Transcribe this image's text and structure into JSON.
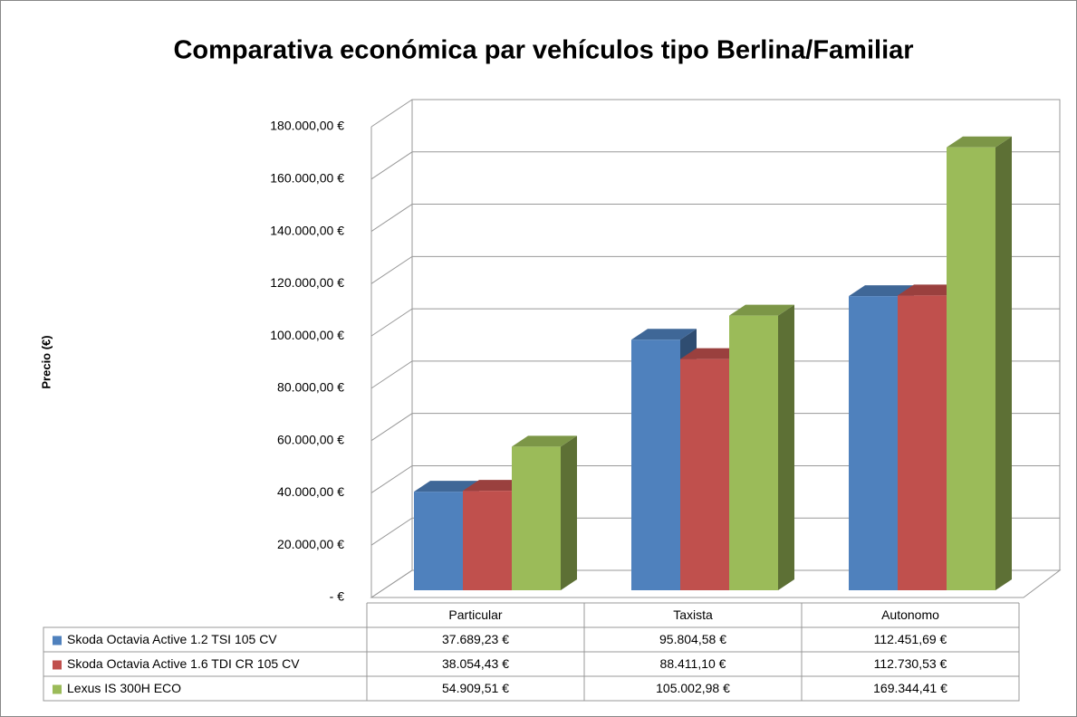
{
  "chart_data": {
    "type": "bar3d",
    "title": "Comparativa económica par vehículos tipo Berlina/Familiar",
    "y_label": "Precio (€)",
    "categories": [
      "Particular",
      "Taxista",
      "Autonomo"
    ],
    "series": [
      {
        "name": "Skoda Octavia Active 1.2 TSI 105 CV",
        "color": "#4f81bd",
        "values": [
          37689.23,
          95804.58,
          112451.69
        ],
        "value_labels": [
          "37.689,23 €",
          "95.804,58 €",
          "112.451,69 €"
        ]
      },
      {
        "name": "Skoda Octavia Active 1.6 TDI CR 105 CV",
        "color": "#c0504d",
        "values": [
          38054.43,
          88411.1,
          112730.53
        ],
        "value_labels": [
          "38.054,43 €",
          "88.411,10 €",
          "112.730,53 €"
        ]
      },
      {
        "name": "Lexus IS 300H ECO",
        "color": "#9bbb59",
        "values": [
          54909.51,
          105002.98,
          169344.41
        ],
        "value_labels": [
          "54.909,51 €",
          "105.002,98 €",
          "169.344,41 €"
        ]
      }
    ],
    "ylim": [
      0,
      180000
    ],
    "yticks": [
      {
        "value": 0,
        "label": "- €"
      },
      {
        "value": 20000,
        "label": "20.000,00 €"
      },
      {
        "value": 40000,
        "label": "40.000,00 €"
      },
      {
        "value": 60000,
        "label": "60.000,00 €"
      },
      {
        "value": 80000,
        "label": "80.000,00 €"
      },
      {
        "value": 100000,
        "label": "100.000,00 €"
      },
      {
        "value": 120000,
        "label": "120.000,00 €"
      },
      {
        "value": 140000,
        "label": "140.000,00 €"
      },
      {
        "value": 160000,
        "label": "160.000,00 €"
      },
      {
        "value": 180000,
        "label": "180.000,00 €"
      }
    ],
    "grid": true,
    "data_table": true
  }
}
